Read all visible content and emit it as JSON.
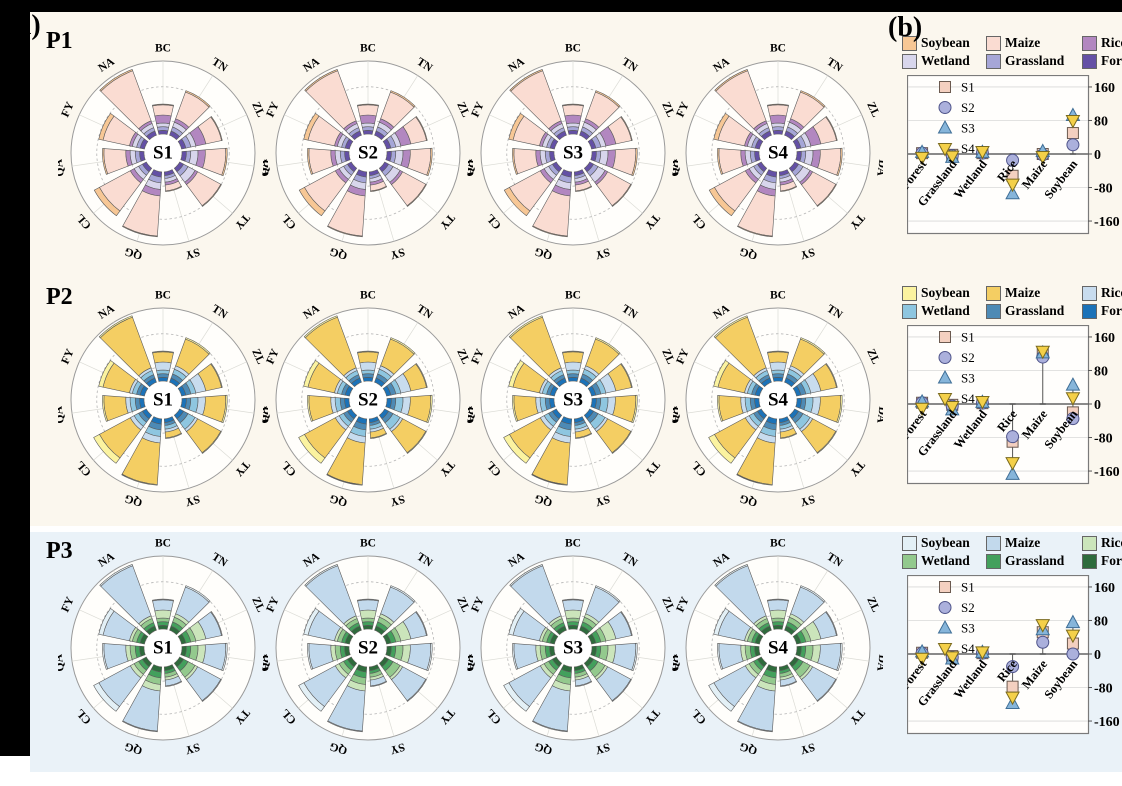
{
  "panel_a": "(a)",
  "panel_b": "(b)",
  "chart_data": {
    "type": "mixed",
    "description_title": "",
    "site_labels": [
      "BC",
      "TN",
      "ZL",
      "DA",
      "TY",
      "SY",
      "QG",
      "CL",
      "QA",
      "FY",
      "NA"
    ],
    "crops": [
      "Forest",
      "Grassland",
      "Wetland",
      "Rice",
      "Maize",
      "Soybean"
    ],
    "scenarios": [
      "S1",
      "S2",
      "S3",
      "S4"
    ],
    "scatter_axis": {
      "yticks": [
        160,
        80,
        0,
        -80,
        -160
      ],
      "ylim": [
        -190,
        190
      ],
      "grid": true
    },
    "marker_styles": {
      "S1": {
        "shape": "square",
        "fill": "#f4d0c0",
        "stroke": "#6b5a50"
      },
      "S2": {
        "shape": "circle",
        "fill": "#abb0dc",
        "stroke": "#4f548a"
      },
      "S3": {
        "shape": "triangle-up",
        "fill": "#86b5da",
        "stroke": "#3f6e96"
      },
      "S4": {
        "shape": "triangle-down",
        "fill": "#f4d049",
        "stroke": "#7a6a1e"
      }
    },
    "rows": [
      {
        "label": "P1",
        "band_bg": "#fbf7ee",
        "crop_colors": {
          "Soybean": "#f7c795",
          "Maize": "#fadcd2",
          "Rice": "#b287c0",
          "Wetland": "#d8d6ec",
          "Grassland": "#a6a6d7",
          "Forest": "#6450a5"
        },
        "legend_rows": [
          [
            "Soybean",
            "Maize",
            "Rice"
          ],
          [
            "Wetland",
            "Grassland",
            "Forest"
          ]
        ],
        "rose_type": "polar-stacked-bar",
        "rose_cumulative_fractions": [
          [
            0.05,
            0.1,
            0.15,
            0.26,
            0.4,
            0.41
          ],
          [
            0.06,
            0.12,
            0.19,
            0.24,
            0.63,
            0.65
          ],
          [
            0.06,
            0.13,
            0.2,
            0.34,
            0.56,
            0.57
          ],
          [
            0.06,
            0.12,
            0.22,
            0.32,
            0.6,
            0.62
          ],
          [
            0.06,
            0.13,
            0.24,
            0.28,
            0.64,
            0.65
          ],
          [
            0.05,
            0.09,
            0.14,
            0.18,
            0.26,
            0.27
          ],
          [
            0.07,
            0.15,
            0.24,
            0.33,
            0.88,
            0.89
          ],
          [
            0.06,
            0.12,
            0.19,
            0.25,
            0.73,
            0.81
          ],
          [
            0.06,
            0.12,
            0.19,
            0.25,
            0.55,
            0.57
          ],
          [
            0.06,
            0.11,
            0.17,
            0.21,
            0.58,
            0.64
          ],
          [
            0.06,
            0.11,
            0.17,
            0.21,
            0.94,
            0.96
          ]
        ],
        "scatter": {
          "type": "scatter",
          "categories": [
            "Forest",
            "Grassland",
            "Wetland",
            "Rice",
            "Maize",
            "Soybean"
          ],
          "series": [
            {
              "name": "S1",
              "values": [
                2,
                -2,
                2,
                -52,
                0,
                50
              ]
            },
            {
              "name": "S2",
              "values": [
                2,
                -4,
                2,
                -15,
                -2,
                22
              ]
            },
            {
              "name": "S3",
              "values": [
                4,
                -8,
                4,
                -95,
                6,
                92
              ]
            },
            {
              "name": "S4",
              "values": [
                -8,
                -5,
                6,
                -72,
                -6,
                80
              ]
            }
          ]
        }
      },
      {
        "label": "P2",
        "band_bg": "#fbf7ee",
        "crop_colors": {
          "Soybean": "#fbf3a0",
          "Maize": "#f4ce63",
          "Rice": "#c8dcee",
          "Wetland": "#8ec6e0",
          "Grassland": "#4d8ab5",
          "Forest": "#1b72b8"
        },
        "legend_rows": [
          [
            "Soybean",
            "Maize",
            "Rice"
          ],
          [
            "Wetland",
            "Grassland",
            "Forest"
          ]
        ],
        "rose_type": "polar-stacked-bar",
        "rose_cumulative_fractions": [
          [
            0.05,
            0.1,
            0.15,
            0.26,
            0.4,
            0.41
          ],
          [
            0.06,
            0.12,
            0.19,
            0.24,
            0.63,
            0.65
          ],
          [
            0.06,
            0.13,
            0.2,
            0.34,
            0.56,
            0.57
          ],
          [
            0.06,
            0.12,
            0.22,
            0.32,
            0.6,
            0.62
          ],
          [
            0.06,
            0.13,
            0.24,
            0.28,
            0.64,
            0.65
          ],
          [
            0.05,
            0.09,
            0.14,
            0.18,
            0.26,
            0.27
          ],
          [
            0.07,
            0.15,
            0.24,
            0.33,
            0.9,
            0.91
          ],
          [
            0.06,
            0.12,
            0.19,
            0.25,
            0.73,
            0.82
          ],
          [
            0.06,
            0.12,
            0.19,
            0.25,
            0.55,
            0.57
          ],
          [
            0.06,
            0.11,
            0.17,
            0.21,
            0.58,
            0.64
          ],
          [
            0.06,
            0.11,
            0.17,
            0.21,
            0.95,
            0.97
          ]
        ],
        "scatter": {
          "type": "scatter",
          "categories": [
            "Forest",
            "Grassland",
            "Wetland",
            "Rice",
            "Maize",
            "Soybean"
          ],
          "series": [
            {
              "name": "S1",
              "values": [
                3,
                -2,
                2,
                -90,
                120,
                -20
              ]
            },
            {
              "name": "S2",
              "values": [
                3,
                -5,
                2,
                -78,
                112,
                -35
              ]
            },
            {
              "name": "S3",
              "values": [
                5,
                -14,
                4,
                -168,
                122,
                45
              ]
            },
            {
              "name": "S4",
              "values": [
                -10,
                -6,
                6,
                -140,
                126,
                15
              ]
            }
          ]
        }
      },
      {
        "label": "P3",
        "band_bg": "#eaf2f8",
        "crop_colors": {
          "Soybean": "#e3f0f6",
          "Maize": "#c2d9ec",
          "Rice": "#cbe5bb",
          "Wetland": "#93c98d",
          "Grassland": "#43a05c",
          "Forest": "#2e6b3c"
        },
        "legend_rows": [
          [
            "Soybean",
            "Maize",
            "Rice"
          ],
          [
            "Wetland",
            "Grassland",
            "Forest"
          ]
        ],
        "rose_type": "polar-stacked-bar",
        "rose_cumulative_fractions": [
          [
            0.05,
            0.1,
            0.15,
            0.26,
            0.4,
            0.41
          ],
          [
            0.06,
            0.12,
            0.19,
            0.24,
            0.63,
            0.65
          ],
          [
            0.06,
            0.13,
            0.2,
            0.34,
            0.56,
            0.57
          ],
          [
            0.06,
            0.12,
            0.22,
            0.32,
            0.6,
            0.62
          ],
          [
            0.06,
            0.13,
            0.24,
            0.28,
            0.64,
            0.65
          ],
          [
            0.05,
            0.09,
            0.14,
            0.18,
            0.26,
            0.27
          ],
          [
            0.07,
            0.15,
            0.24,
            0.33,
            0.88,
            0.89
          ],
          [
            0.06,
            0.12,
            0.19,
            0.25,
            0.74,
            0.82
          ],
          [
            0.06,
            0.12,
            0.19,
            0.25,
            0.55,
            0.57
          ],
          [
            0.06,
            0.11,
            0.17,
            0.21,
            0.58,
            0.64
          ],
          [
            0.06,
            0.11,
            0.17,
            0.21,
            0.94,
            0.96
          ]
        ],
        "scatter": {
          "type": "scatter",
          "categories": [
            "Forest",
            "Grassland",
            "Wetland",
            "Rice",
            "Maize",
            "Soybean"
          ],
          "series": [
            {
              "name": "S1",
              "values": [
                3,
                -5,
                2,
                -78,
                52,
                25
              ]
            },
            {
              "name": "S2",
              "values": [
                2,
                -8,
                2,
                -30,
                28,
                0
              ]
            },
            {
              "name": "S3",
              "values": [
                5,
                -12,
                4,
                -118,
                58,
                75
              ]
            },
            {
              "name": "S4",
              "values": [
                -10,
                -7,
                5,
                -103,
                70,
                45
              ]
            }
          ]
        }
      }
    ]
  }
}
